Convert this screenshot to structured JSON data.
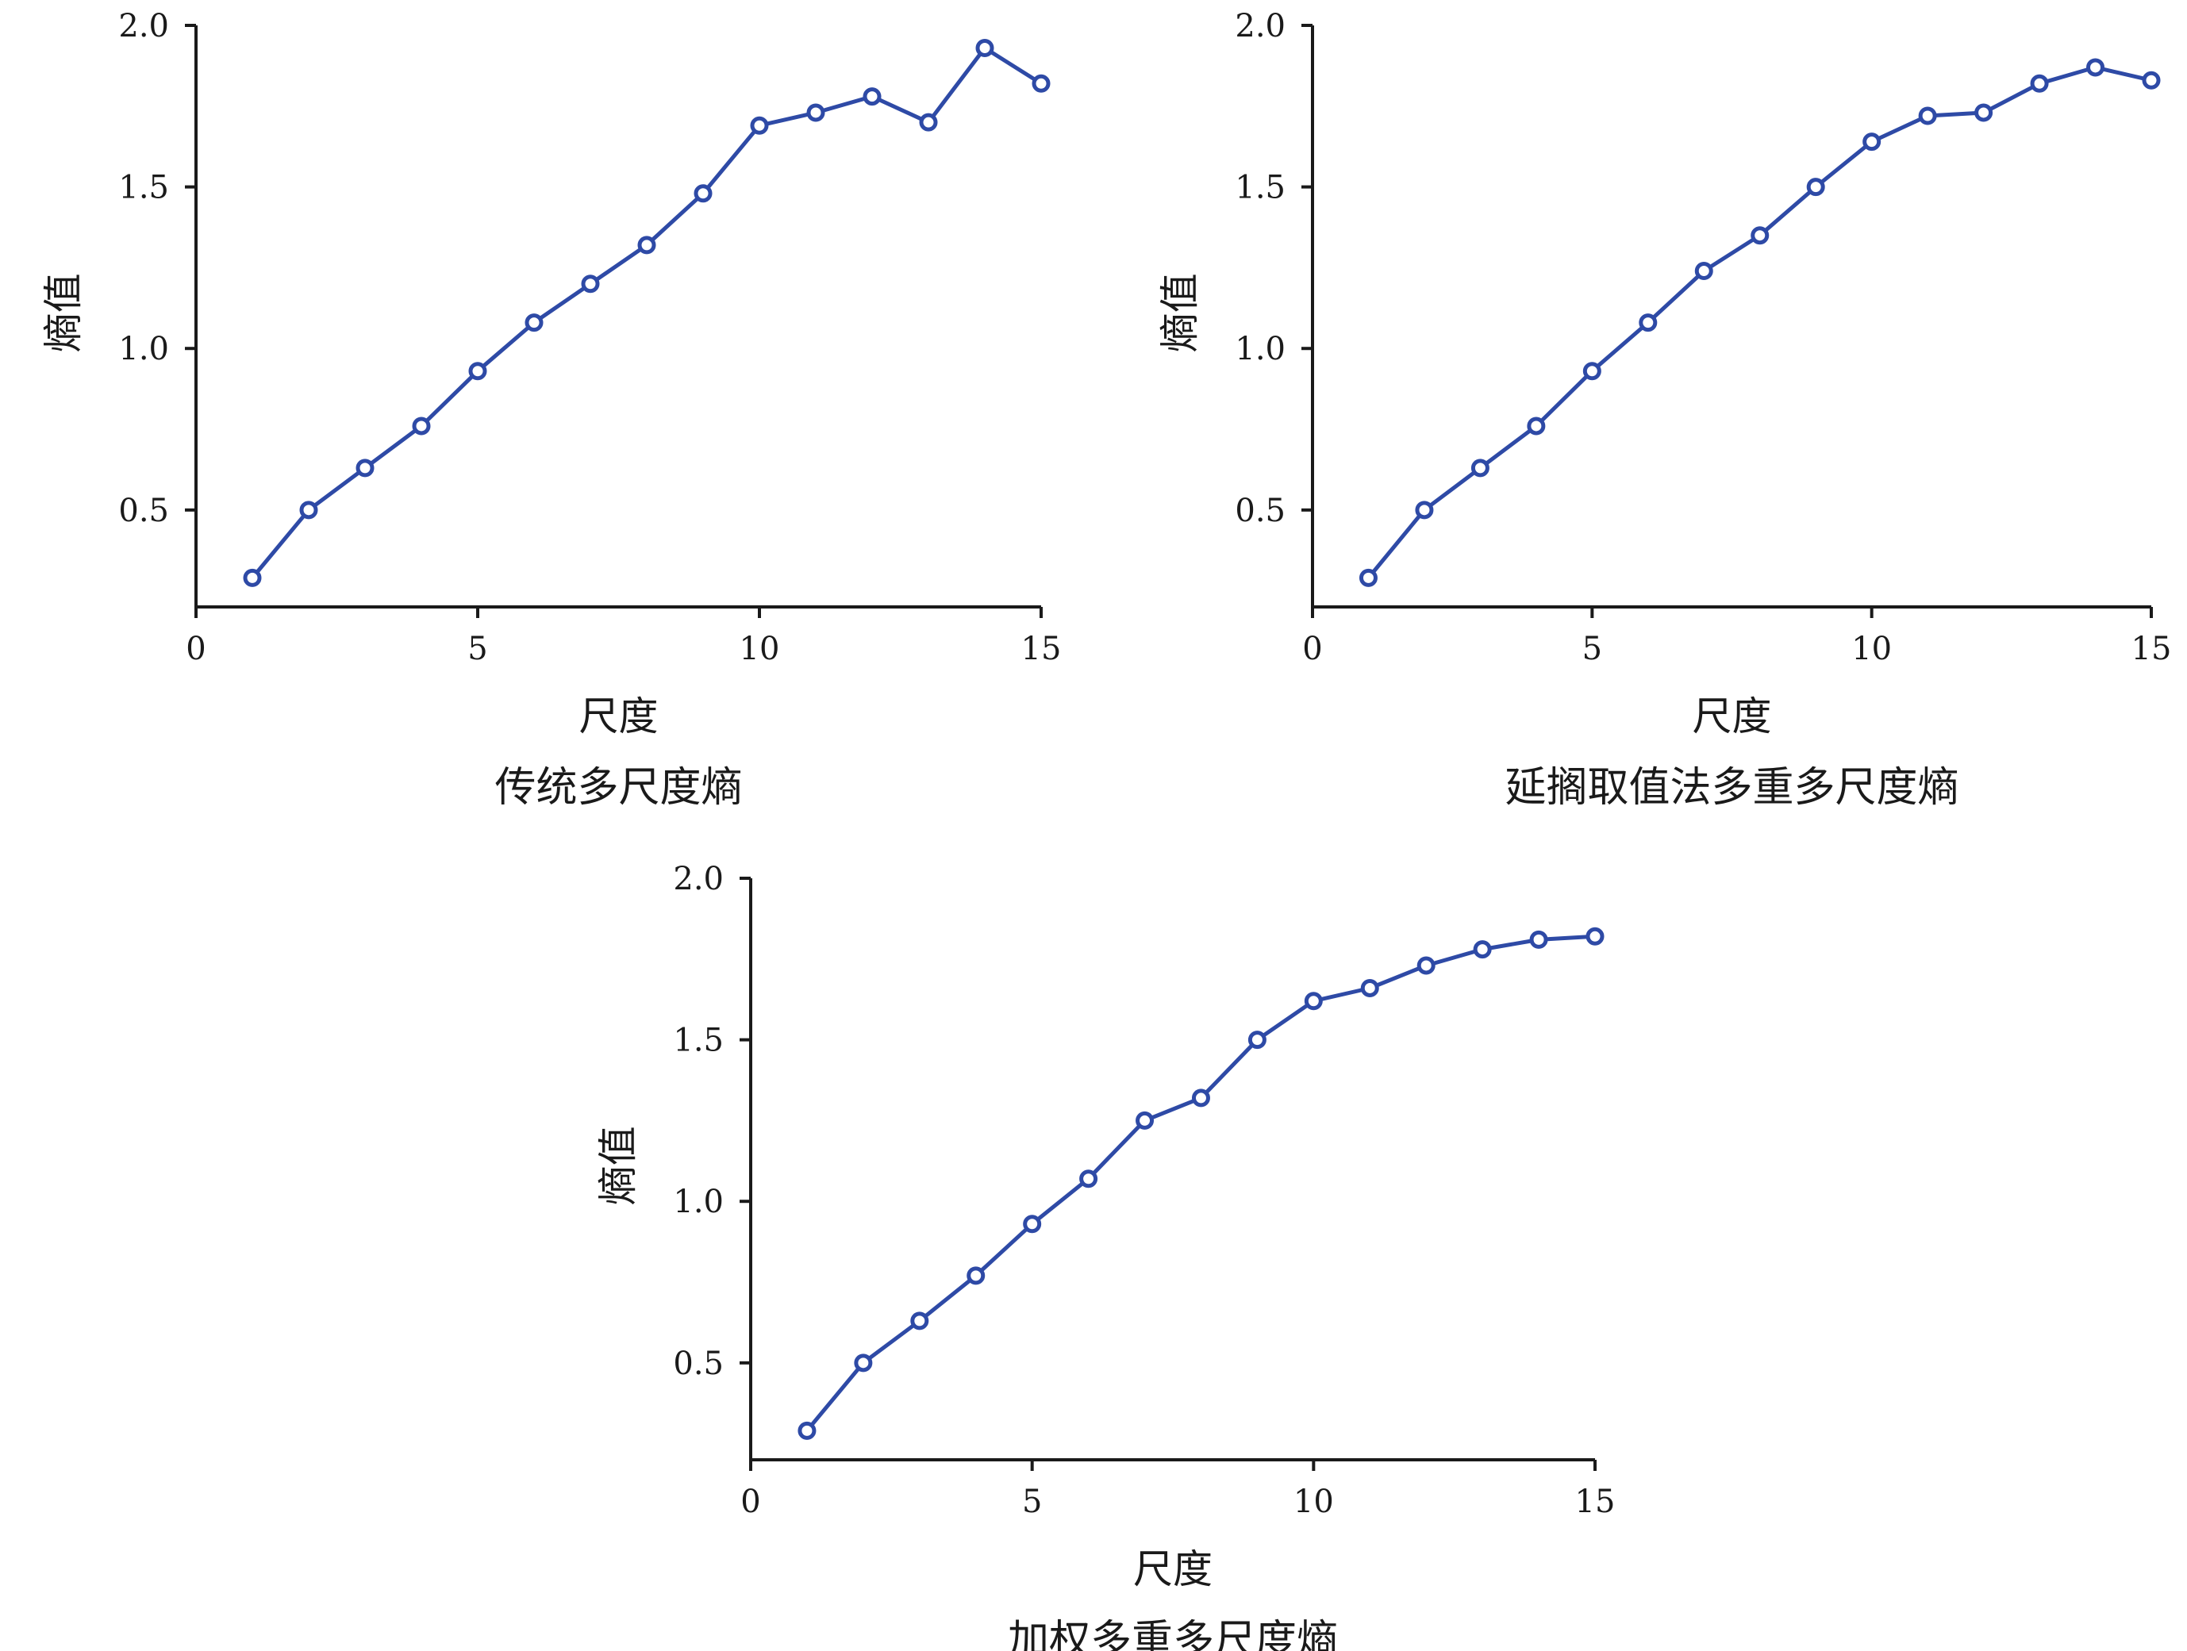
{
  "chart_data": [
    {
      "type": "line",
      "title": "传统多尺度熵",
      "xlabel": "尺度",
      "ylabel": "熵值",
      "xlim": [
        0,
        15
      ],
      "ylim": [
        0.2,
        2.0
      ],
      "xticks": [
        0,
        5,
        10,
        15
      ],
      "yticks": [
        0.5,
        1.0,
        1.5,
        2.0
      ],
      "ytick_labels": [
        "0.5",
        "1.0",
        "1.5",
        "2.0"
      ],
      "grid": false,
      "series": [
        {
          "color": "#2e4aa6",
          "marker": "open-circle",
          "x": [
            1,
            2,
            3,
            4,
            5,
            6,
            7,
            8,
            9,
            10,
            11,
            12,
            13,
            14,
            15
          ],
          "y": [
            0.29,
            0.5,
            0.63,
            0.76,
            0.93,
            1.08,
            1.2,
            1.32,
            1.48,
            1.69,
            1.73,
            1.78,
            1.7,
            1.93,
            1.82
          ]
        }
      ]
    },
    {
      "type": "line",
      "title": "延搁取值法多重多尺度熵",
      "xlabel": "尺度",
      "ylabel": "熵值",
      "xlim": [
        0,
        15
      ],
      "ylim": [
        0.2,
        2.0
      ],
      "xticks": [
        0,
        5,
        10,
        15
      ],
      "yticks": [
        0.5,
        1.0,
        1.5,
        2.0
      ],
      "ytick_labels": [
        "0.5",
        "1.0",
        "1.5",
        "2.0"
      ],
      "grid": false,
      "series": [
        {
          "color": "#2e4aa6",
          "marker": "open-circle",
          "x": [
            1,
            2,
            3,
            4,
            5,
            6,
            7,
            8,
            9,
            10,
            11,
            12,
            13,
            14,
            15
          ],
          "y": [
            0.29,
            0.5,
            0.63,
            0.76,
            0.93,
            1.08,
            1.24,
            1.35,
            1.5,
            1.64,
            1.72,
            1.73,
            1.82,
            1.87,
            1.83
          ]
        }
      ]
    },
    {
      "type": "line",
      "title": "加权多重多尺度熵",
      "xlabel": "尺度",
      "ylabel": "熵值",
      "xlim": [
        0,
        15
      ],
      "ylim": [
        0.2,
        2.0
      ],
      "xticks": [
        0,
        5,
        10,
        15
      ],
      "yticks": [
        0.5,
        1.0,
        1.5,
        2.0
      ],
      "ytick_labels": [
        "0.5",
        "1.0",
        "1.5",
        "2.0"
      ],
      "grid": false,
      "series": [
        {
          "color": "#2e4aa6",
          "marker": "open-circle",
          "x": [
            1,
            2,
            3,
            4,
            5,
            6,
            7,
            8,
            9,
            10,
            11,
            12,
            13,
            14,
            15
          ],
          "y": [
            0.29,
            0.5,
            0.63,
            0.77,
            0.93,
            1.07,
            1.25,
            1.32,
            1.5,
            1.62,
            1.66,
            1.73,
            1.78,
            1.81,
            1.82
          ]
        }
      ]
    }
  ]
}
